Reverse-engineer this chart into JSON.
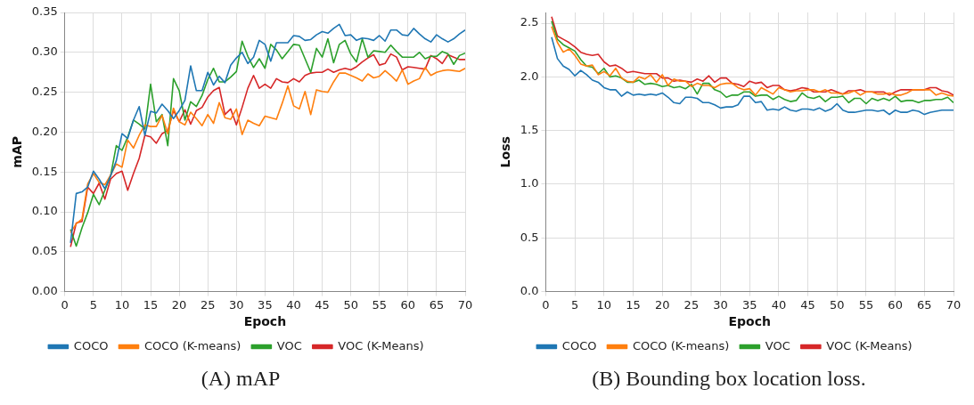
{
  "chart_data": [
    {
      "type": "line",
      "xlabel": "Epoch",
      "ylabel": "mAP",
      "xlim": [
        0,
        70
      ],
      "ylim": [
        0,
        0.35
      ],
      "xticks": [
        0,
        5,
        10,
        15,
        20,
        25,
        30,
        35,
        40,
        45,
        50,
        55,
        60,
        65,
        70
      ],
      "yticks": [
        {
          "value": 0,
          "label": "0.00"
        },
        0.05,
        {
          "value": 0.1,
          "label": "0.10"
        },
        0.15,
        {
          "value": 0.2,
          "label": "0.20"
        },
        0.25,
        {
          "value": 0.3,
          "label": "0.30"
        },
        0.35
      ],
      "grid": true,
      "legend": "bottom",
      "marker": "none",
      "annotations": [
        "(A) mAP"
      ],
      "x": [
        1,
        2,
        3,
        4,
        5,
        6,
        7,
        8,
        9,
        10,
        11,
        12,
        13,
        14,
        15,
        16,
        17,
        18,
        19,
        20,
        21,
        22,
        23,
        24,
        25,
        26,
        27,
        28,
        29,
        30,
        31,
        32,
        33,
        34,
        35,
        36,
        37,
        38,
        39,
        40,
        41,
        42,
        43,
        44,
        45,
        46,
        47,
        48,
        49,
        50,
        51,
        52,
        53,
        54,
        55,
        56,
        57,
        58,
        59,
        60,
        61,
        62,
        63,
        64,
        65,
        66,
        67,
        68,
        69,
        70
      ],
      "series": [
        {
          "name": "COCO",
          "color": "#1f77b4",
          "values": [
            0.061,
            0.123,
            0.125,
            0.131,
            0.151,
            0.141,
            0.129,
            0.145,
            0.164,
            0.198,
            0.192,
            0.215,
            0.232,
            0.196,
            0.226,
            0.224,
            0.235,
            0.227,
            0.217,
            0.227,
            0.24,
            0.283,
            0.252,
            0.252,
            0.275,
            0.259,
            0.27,
            0.262,
            0.284,
            0.293,
            0.3,
            0.286,
            0.294,
            0.315,
            0.31,
            0.289,
            0.312,
            0.312,
            0.312,
            0.321,
            0.32,
            0.315,
            0.316,
            0.322,
            0.326,
            0.324,
            0.33,
            0.335,
            0.321,
            0.322,
            0.315,
            0.318,
            0.317,
            0.315,
            0.321,
            0.314,
            0.328,
            0.328,
            0.322,
            0.321,
            0.33,
            0.323,
            0.317,
            0.313,
            0.322,
            0.317,
            0.313,
            0.317,
            0.323,
            0.328
          ]
        },
        {
          "name": "COCO (K-means)",
          "color": "#ff7f0e",
          "values": [
            0.074,
            0.085,
            0.091,
            0.135,
            0.148,
            0.137,
            0.134,
            0.146,
            0.16,
            0.156,
            0.19,
            0.18,
            0.196,
            0.209,
            0.207,
            0.207,
            0.221,
            0.198,
            0.23,
            0.213,
            0.209,
            0.225,
            0.217,
            0.208,
            0.222,
            0.211,
            0.237,
            0.218,
            0.216,
            0.229,
            0.197,
            0.215,
            0.211,
            0.208,
            0.22,
            0.218,
            0.216,
            0.236,
            0.258,
            0.233,
            0.229,
            0.251,
            0.222,
            0.253,
            0.251,
            0.25,
            0.263,
            0.274,
            0.274,
            0.271,
            0.268,
            0.264,
            0.273,
            0.268,
            0.27,
            0.277,
            0.271,
            0.264,
            0.278,
            0.26,
            0.264,
            0.267,
            0.281,
            0.271,
            0.275,
            0.277,
            0.278,
            0.277,
            0.276,
            0.28
          ]
        },
        {
          "name": "VOC",
          "color": "#2ca02c",
          "values": [
            0.078,
            0.057,
            0.08,
            0.099,
            0.122,
            0.109,
            0.127,
            0.145,
            0.183,
            0.177,
            0.194,
            0.215,
            0.21,
            0.204,
            0.26,
            0.213,
            0.222,
            0.183,
            0.267,
            0.252,
            0.215,
            0.238,
            0.232,
            0.246,
            0.266,
            0.28,
            0.263,
            0.263,
            0.269,
            0.276,
            0.314,
            0.295,
            0.281,
            0.292,
            0.28,
            0.31,
            0.303,
            0.292,
            0.301,
            0.31,
            0.309,
            0.292,
            0.275,
            0.305,
            0.294,
            0.317,
            0.287,
            0.31,
            0.315,
            0.298,
            0.288,
            0.317,
            0.294,
            0.302,
            0.301,
            0.3,
            0.309,
            0.301,
            0.294,
            0.294,
            0.294,
            0.3,
            0.292,
            0.295,
            0.295,
            0.301,
            0.298,
            0.285,
            0.296,
            0.299
          ]
        },
        {
          "name": "VOC (K-Means)",
          "color": "#d62728",
          "values": [
            0.056,
            0.086,
            0.088,
            0.131,
            0.123,
            0.136,
            0.116,
            0.141,
            0.148,
            0.151,
            0.127,
            0.148,
            0.167,
            0.196,
            0.194,
            0.186,
            0.198,
            0.202,
            0.227,
            0.213,
            0.228,
            0.21,
            0.227,
            0.231,
            0.244,
            0.252,
            0.256,
            0.222,
            0.229,
            0.209,
            0.231,
            0.255,
            0.271,
            0.255,
            0.26,
            0.255,
            0.267,
            0.263,
            0.262,
            0.267,
            0.263,
            0.271,
            0.274,
            0.275,
            0.275,
            0.279,
            0.275,
            0.278,
            0.28,
            0.278,
            0.282,
            0.288,
            0.293,
            0.297,
            0.284,
            0.286,
            0.298,
            0.294,
            0.278,
            0.282,
            0.281,
            0.28,
            0.279,
            0.296,
            0.292,
            0.286,
            0.297,
            0.294,
            0.291,
            0.291
          ]
        }
      ]
    },
    {
      "type": "line",
      "xlabel": "Epoch",
      "ylabel": "Loss",
      "xlim": [
        0,
        70
      ],
      "ylim": [
        0,
        2.6
      ],
      "xticks": [
        0,
        5,
        10,
        15,
        20,
        25,
        30,
        35,
        40,
        45,
        50,
        55,
        60,
        65,
        70
      ],
      "yticks": [
        {
          "value": 0,
          "label": "0.0"
        },
        0.5,
        {
          "value": 1,
          "label": "1.0"
        },
        1.5,
        {
          "value": 2,
          "label": "2.0"
        },
        2.5
      ],
      "grid": true,
      "legend": "bottom",
      "marker": "none",
      "annotations": [
        "(B) Bounding box location loss."
      ],
      "x": [
        1,
        2,
        3,
        4,
        5,
        6,
        7,
        8,
        9,
        10,
        11,
        12,
        13,
        14,
        15,
        16,
        17,
        18,
        19,
        20,
        21,
        22,
        23,
        24,
        25,
        26,
        27,
        28,
        29,
        30,
        31,
        32,
        33,
        34,
        35,
        36,
        37,
        38,
        39,
        40,
        41,
        42,
        43,
        44,
        45,
        46,
        47,
        48,
        49,
        50,
        51,
        52,
        53,
        54,
        55,
        56,
        57,
        58,
        59,
        60,
        61,
        62,
        63,
        64,
        65,
        66,
        67,
        68,
        69,
        70
      ],
      "series": [
        {
          "name": "COCO",
          "color": "#1f77b4",
          "values": [
            2.37,
            2.17,
            2.1,
            2.07,
            2.01,
            2.06,
            2.02,
            1.97,
            1.95,
            1.9,
            1.88,
            1.88,
            1.82,
            1.86,
            1.83,
            1.84,
            1.83,
            1.84,
            1.83,
            1.85,
            1.81,
            1.76,
            1.75,
            1.81,
            1.81,
            1.8,
            1.76,
            1.76,
            1.74,
            1.71,
            1.72,
            1.72,
            1.74,
            1.82,
            1.82,
            1.76,
            1.77,
            1.69,
            1.7,
            1.69,
            1.72,
            1.69,
            1.68,
            1.7,
            1.7,
            1.69,
            1.71,
            1.68,
            1.7,
            1.75,
            1.69,
            1.67,
            1.67,
            1.68,
            1.69,
            1.69,
            1.68,
            1.69,
            1.65,
            1.69,
            1.67,
            1.67,
            1.69,
            1.68,
            1.65,
            1.67,
            1.68,
            1.69,
            1.69,
            1.69
          ]
        },
        {
          "name": "COCO (K-means)",
          "color": "#ff7f0e",
          "values": [
            2.47,
            2.32,
            2.23,
            2.26,
            2.2,
            2.12,
            2.1,
            2.11,
            2.02,
            2.05,
            2.01,
            2.08,
            1.99,
            1.96,
            1.95,
            2,
            1.98,
            2.02,
            1.95,
            2.02,
            1.92,
            1.98,
            1.96,
            1.96,
            1.91,
            1.94,
            1.92,
            1.92,
            1.9,
            1.93,
            1.94,
            1.94,
            1.9,
            1.88,
            1.89,
            1.83,
            1.9,
            1.87,
            1.84,
            1.9,
            1.88,
            1.86,
            1.87,
            1.87,
            1.88,
            1.88,
            1.86,
            1.88,
            1.85,
            1.85,
            1.84,
            1.85,
            1.87,
            1.83,
            1.86,
            1.86,
            1.84,
            1.84,
            1.85,
            1.83,
            1.83,
            1.85,
            1.88,
            1.88,
            1.88,
            1.88,
            1.83,
            1.85,
            1.83,
            1.82
          ]
        },
        {
          "name": "VOC",
          "color": "#2ca02c",
          "values": [
            2.52,
            2.35,
            2.3,
            2.27,
            2.24,
            2.16,
            2.1,
            2.09,
            2.03,
            2.08,
            2,
            2.01,
            1.99,
            1.95,
            1.95,
            1.97,
            1.93,
            1.94,
            1.93,
            1.91,
            1.92,
            1.9,
            1.91,
            1.89,
            1.93,
            1.84,
            1.94,
            1.94,
            1.88,
            1.86,
            1.81,
            1.83,
            1.83,
            1.86,
            1.86,
            1.82,
            1.83,
            1.83,
            1.79,
            1.82,
            1.79,
            1.77,
            1.78,
            1.85,
            1.81,
            1.8,
            1.82,
            1.77,
            1.81,
            1.81,
            1.82,
            1.76,
            1.8,
            1.8,
            1.75,
            1.8,
            1.78,
            1.8,
            1.78,
            1.82,
            1.77,
            1.78,
            1.78,
            1.76,
            1.78,
            1.78,
            1.79,
            1.79,
            1.81,
            1.76
          ]
        },
        {
          "name": "VOC (K-Means)",
          "color": "#d62728",
          "values": [
            2.56,
            2.38,
            2.35,
            2.32,
            2.28,
            2.23,
            2.21,
            2.2,
            2.21,
            2.14,
            2.1,
            2.11,
            2.08,
            2.04,
            2.05,
            2.04,
            2.03,
            2.03,
            2.03,
            1.99,
            1.99,
            1.96,
            1.97,
            1.96,
            1.95,
            1.98,
            1.96,
            2.01,
            1.95,
            1.99,
            1.99,
            1.94,
            1.93,
            1.91,
            1.96,
            1.94,
            1.95,
            1.9,
            1.92,
            1.92,
            1.88,
            1.87,
            1.88,
            1.9,
            1.89,
            1.86,
            1.86,
            1.86,
            1.88,
            1.86,
            1.84,
            1.87,
            1.87,
            1.88,
            1.86,
            1.86,
            1.86,
            1.86,
            1.83,
            1.86,
            1.88,
            1.88,
            1.88,
            1.88,
            1.88,
            1.9,
            1.9,
            1.87,
            1.86,
            1.83
          ]
        }
      ]
    }
  ]
}
